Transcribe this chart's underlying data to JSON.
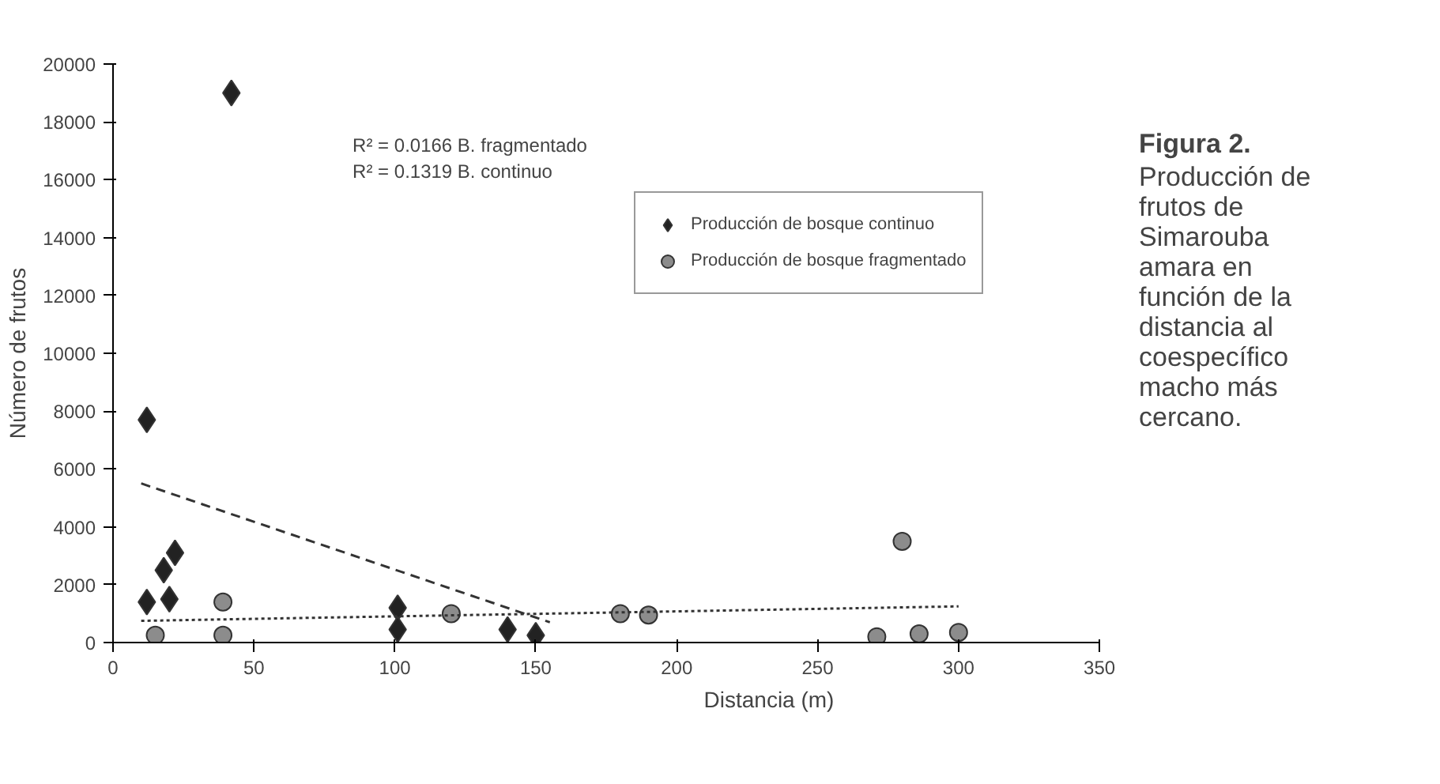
{
  "chart_data": {
    "type": "scatter",
    "title": "Figura 2.",
    "xlabel": "Distancia (m)",
    "ylabel": "Número de frutos",
    "xlim": [
      0,
      350
    ],
    "xticks": [
      0,
      50,
      100,
      150,
      200,
      250,
      300,
      350
    ],
    "ylim": [
      0,
      20000
    ],
    "yticks": [
      0,
      2000,
      4000,
      6000,
      8000,
      10000,
      12000,
      14000,
      16000,
      18000,
      20000
    ],
    "grid": false,
    "legend": "top right",
    "annotations": [
      "R² = 0.0166 B. fragmentado",
      "R² = 0.1319 B. continuo",
      "Producción de frutos de Simarouba amara en función de la distancia al coespecífico macho más cercano."
    ],
    "series": [
      {
        "name": "Producción de bosque continuo",
        "color": "#222222",
        "marker": "diamond",
        "x": [
          12,
          12,
          18,
          20,
          22,
          42,
          101,
          101,
          140,
          150
        ],
        "values": [
          7700,
          1400,
          2500,
          1500,
          3100,
          19000,
          1200,
          450,
          450,
          250
        ]
      },
      {
        "name": "Producción de bosque fragmentado",
        "color": "#8c8c8c",
        "marker": "circle",
        "x": [
          15,
          39,
          39,
          120,
          180,
          190,
          271,
          280,
          286,
          300
        ],
        "values": [
          250,
          1400,
          250,
          1000,
          1000,
          950,
          200,
          3500,
          300,
          350
        ]
      },
      {
        "type": "line",
        "color": "#333333",
        "line_style": "dashed",
        "x": [
          10,
          155
        ],
        "values": [
          5500,
          700
        ]
      },
      {
        "type": "line",
        "color": "#333333",
        "line_style": "dotted",
        "x": [
          10,
          300
        ],
        "values": [
          750,
          1250
        ]
      }
    ]
  }
}
